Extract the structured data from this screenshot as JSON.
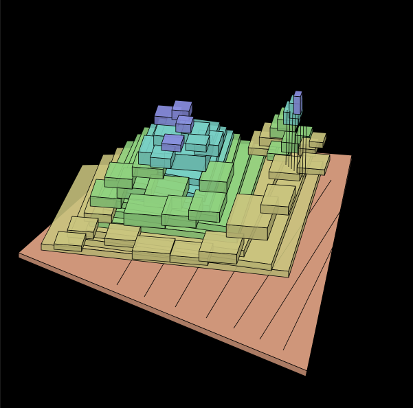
{
  "scene": {
    "kind": "3d-stepped-terrain",
    "background": "#000000",
    "edge_color": "#000000",
    "colors": {
      "base": "#cf967a",
      "low": "#c9c47e",
      "mid": "#8fd17f",
      "high": "#78cfc4",
      "peak": "#8a8ee0"
    },
    "levels": [
      "base",
      "low",
      "mid",
      "high",
      "peak"
    ]
  }
}
